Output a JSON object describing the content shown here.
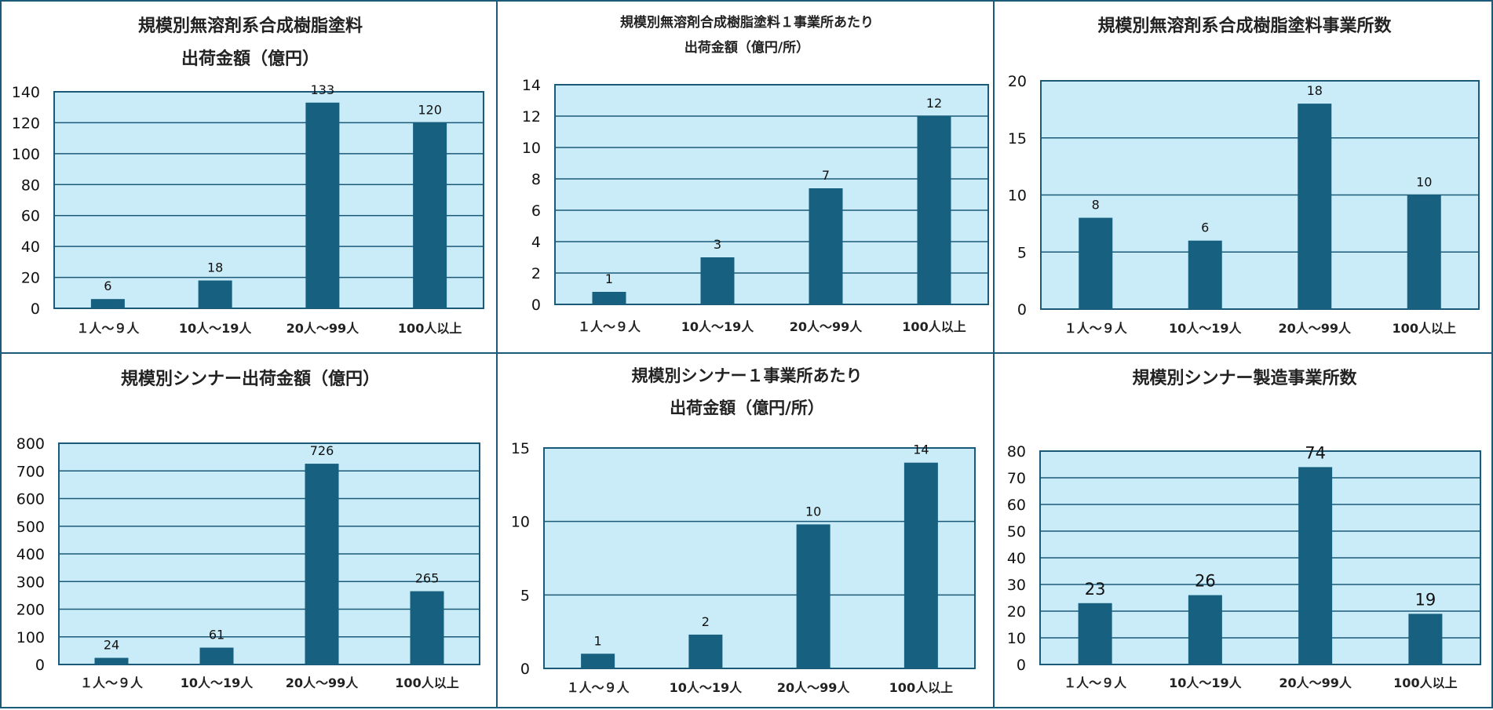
{
  "colors": {
    "plot_bg": "#c9ecf8",
    "bar": "#17607f",
    "grid": "#1b5a78",
    "border": "#1b5a78"
  },
  "chart_data": [
    {
      "type": "bar",
      "title_lines": [
        "規模別無溶剤系合成樹脂塗料",
        "出荷金額（億円）"
      ],
      "categories": [
        "１人～９人",
        "10人～19人",
        "20人～99人",
        "100人以上"
      ],
      "values": [
        6,
        18,
        133,
        120
      ],
      "data_labels": [
        "6",
        "18",
        "133",
        "120"
      ],
      "ylim": [
        0,
        140
      ],
      "yticks": [
        0,
        20,
        40,
        60,
        80,
        100,
        120,
        140
      ],
      "grid": true
    },
    {
      "type": "bar",
      "title_lines": [
        "規模別無溶剤合成樹脂塗料１事業所あたり",
        "出荷金額（億円/所）"
      ],
      "categories": [
        "１人～９人",
        "10人～19人",
        "20人～99人",
        "100人以上"
      ],
      "values": [
        0.8,
        3,
        7.4,
        12
      ],
      "data_labels": [
        "1",
        "3",
        "7",
        "12"
      ],
      "ylim": [
        0,
        14
      ],
      "yticks": [
        0,
        2,
        4,
        6,
        8,
        10,
        12,
        14
      ],
      "grid": true
    },
    {
      "type": "bar",
      "title_lines": [
        "規模別無溶剤系合成樹脂塗料事業所数"
      ],
      "categories": [
        "１人～９人",
        "10人～19人",
        "20人～99人",
        "100人以上"
      ],
      "values": [
        8,
        6,
        18,
        10
      ],
      "data_labels": [
        "8",
        "6",
        "18",
        "10"
      ],
      "ylim": [
        0,
        20
      ],
      "yticks": [
        0,
        5,
        10,
        15,
        20
      ],
      "grid": true
    },
    {
      "type": "bar",
      "title_lines": [
        "規模別シンナー出荷金額（億円）"
      ],
      "categories": [
        "１人～９人",
        "10人～19人",
        "20人～99人",
        "100人以上"
      ],
      "values": [
        24,
        61,
        726,
        265
      ],
      "data_labels": [
        "24",
        "61",
        "726",
        "265"
      ],
      "ylim": [
        0,
        800
      ],
      "yticks": [
        0,
        100,
        200,
        300,
        400,
        500,
        600,
        700,
        800
      ],
      "grid": true
    },
    {
      "type": "bar",
      "title_lines": [
        "規模別シンナー１事業所あたり",
        "出荷金額（億円/所）"
      ],
      "categories": [
        "１人～９人",
        "10人～19人",
        "20人～99人",
        "100人以上"
      ],
      "values": [
        1,
        2.3,
        9.8,
        14
      ],
      "data_labels": [
        "1",
        "2",
        "10",
        "14"
      ],
      "ylim": [
        0,
        15
      ],
      "yticks": [
        0,
        5,
        10,
        15
      ],
      "grid": true
    },
    {
      "type": "bar",
      "title_lines": [
        "規模別シンナー製造事業所数"
      ],
      "categories": [
        "１人～９人",
        "10人～19人",
        "20人～99人",
        "100人以上"
      ],
      "values": [
        23,
        26,
        74,
        19
      ],
      "data_labels": [
        "23",
        "26",
        "74",
        "19"
      ],
      "ylim": [
        0,
        80
      ],
      "yticks": [
        0,
        10,
        20,
        30,
        40,
        50,
        60,
        70,
        80
      ],
      "grid": true
    }
  ]
}
